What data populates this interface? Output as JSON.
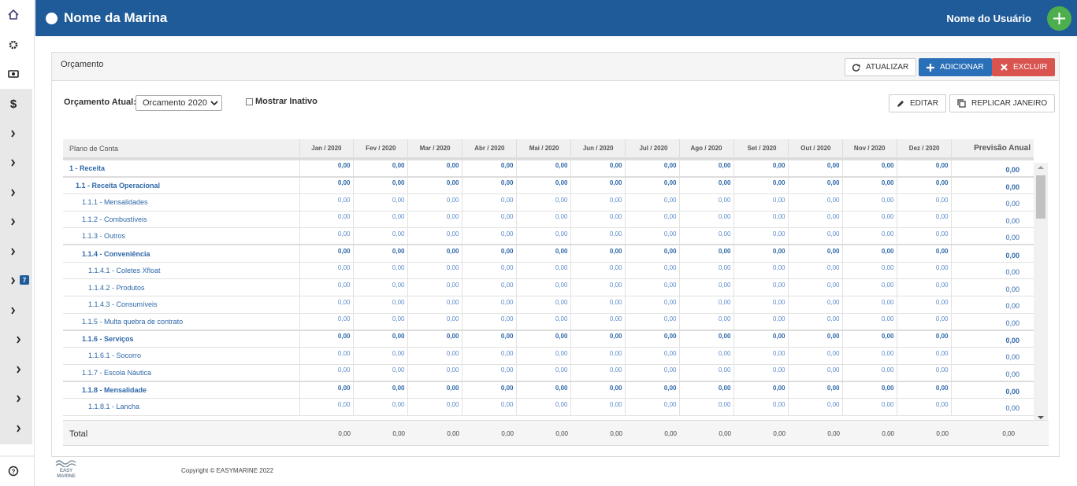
{
  "header": {
    "title": "Nome da Marina",
    "user": "Nome do Usuário"
  },
  "sidebar": {
    "currency_icon": "$",
    "badge": "7",
    "help_icon": "?"
  },
  "panel": {
    "title": "Orçamento",
    "buttons": {
      "refresh": "ATUALIZAR",
      "add": "ADICIONAR",
      "delete": "EXCLUIR",
      "edit": "EDITAR",
      "replicate": "REPLICAR JANEIRO"
    },
    "filter": {
      "label": "Orçamento Atual:",
      "selected": "Orcamento 2020",
      "checkbox": "Mostrar Inativo"
    }
  },
  "table": {
    "header": [
      "Plano de Conta",
      "Jan / 2020",
      "Fev / 2020",
      "Mar / 2020",
      "Abr / 2020",
      "Mai / 2020",
      "Jun / 2020",
      "Jul / 2020",
      "Ago / 2020",
      "Set / 2020",
      "Out / 2020",
      "Nov / 2020",
      "Dez / 2020",
      "Previsão Anual"
    ],
    "rows": [
      {
        "label": "1 - Receita",
        "values": [
          "0,00",
          "0,00",
          "0,00",
          "0,00",
          "0,00",
          "0,00",
          "0,00",
          "0,00",
          "0,00",
          "0,00",
          "0,00",
          "0,00",
          "0,00"
        ]
      },
      {
        "label": "1.1 - Receita Operacional",
        "values": [
          "0,00",
          "0,00",
          "0,00",
          "0,00",
          "0,00",
          "0,00",
          "0,00",
          "0,00",
          "0,00",
          "0,00",
          "0,00",
          "0,00",
          "0,00"
        ]
      },
      {
        "label": "1.1.1 - Mensalidades",
        "values": [
          "0,00",
          "0,00",
          "0,00",
          "0,00",
          "0,00",
          "0,00",
          "0,00",
          "0,00",
          "0,00",
          "0,00",
          "0,00",
          "0,00",
          "0,00"
        ]
      },
      {
        "label": "1.1.2 - Combustíveis",
        "values": [
          "0,00",
          "0,00",
          "0,00",
          "0,00",
          "0,00",
          "0,00",
          "0,00",
          "0,00",
          "0,00",
          "0,00",
          "0,00",
          "0,00",
          "0,00"
        ]
      },
      {
        "label": "1.1.3 - Outros",
        "values": [
          "0,00",
          "0,00",
          "0,00",
          "0,00",
          "0,00",
          "0,00",
          "0,00",
          "0,00",
          "0,00",
          "0,00",
          "0,00",
          "0,00",
          "0,00"
        ]
      },
      {
        "label": "1.1.4 - Conveniência",
        "values": [
          "0,00",
          "0,00",
          "0,00",
          "0,00",
          "0,00",
          "0,00",
          "0,00",
          "0,00",
          "0,00",
          "0,00",
          "0,00",
          "0,00",
          "0,00"
        ]
      },
      {
        "label": "1.1.4.1 - Coletes Xfloat",
        "values": [
          "0,00",
          "0,00",
          "0,00",
          "0,00",
          "0,00",
          "0,00",
          "0,00",
          "0,00",
          "0,00",
          "0,00",
          "0,00",
          "0,00",
          "0,00"
        ]
      },
      {
        "label": "1.1.4.2 - Produtos",
        "values": [
          "0,00",
          "0,00",
          "0,00",
          "0,00",
          "0,00",
          "0,00",
          "0,00",
          "0,00",
          "0,00",
          "0,00",
          "0,00",
          "0,00",
          "0,00"
        ]
      },
      {
        "label": "1.1.4.3 - Consumíveis",
        "values": [
          "0,00",
          "0,00",
          "0,00",
          "0,00",
          "0,00",
          "0,00",
          "0,00",
          "0,00",
          "0,00",
          "0,00",
          "0,00",
          "0,00",
          "0,00"
        ]
      },
      {
        "label": "1.1.5 - Multa quebra de contrato",
        "values": [
          "0,00",
          "0,00",
          "0,00",
          "0,00",
          "0,00",
          "0,00",
          "0,00",
          "0,00",
          "0,00",
          "0,00",
          "0,00",
          "0,00",
          "0,00"
        ]
      },
      {
        "label": "1.1.6 - Serviços",
        "values": [
          "0,00",
          "0,00",
          "0,00",
          "0,00",
          "0,00",
          "0,00",
          "0,00",
          "0,00",
          "0,00",
          "0,00",
          "0,00",
          "0,00",
          "0,00"
        ]
      },
      {
        "label": "1.1.6.1 - Socorro",
        "values": [
          "0,00",
          "0,00",
          "0,00",
          "0,00",
          "0,00",
          "0,00",
          "0,00",
          "0,00",
          "0,00",
          "0,00",
          "0,00",
          "0,00",
          "0,00"
        ]
      },
      {
        "label": "1.1.7 - Escola Náutica",
        "values": [
          "0,00",
          "0,00",
          "0,00",
          "0,00",
          "0,00",
          "0,00",
          "0,00",
          "0,00",
          "0,00",
          "0,00",
          "0,00",
          "0,00",
          "0,00"
        ]
      },
      {
        "label": "1.1.8 - Mensalidade",
        "values": [
          "0,00",
          "0,00",
          "0,00",
          "0,00",
          "0,00",
          "0,00",
          "0,00",
          "0,00",
          "0,00",
          "0,00",
          "0,00",
          "0,00",
          "0,00"
        ]
      },
      {
        "label": "1.1.8.1 - Lancha",
        "values": [
          "0,00",
          "0,00",
          "0,00",
          "0,00",
          "0,00",
          "0,00",
          "0,00",
          "0,00",
          "0,00",
          "0,00",
          "0,00",
          "0,00",
          "0,00"
        ]
      }
    ],
    "total": {
      "label": "Total",
      "values": [
        "0,00",
        "0,00",
        "0,00",
        "0,00",
        "0,00",
        "0,00",
        "0,00",
        "0,00",
        "0,00",
        "0,00",
        "0,00",
        "0,00",
        "0,00"
      ]
    }
  },
  "footer": {
    "logo": "EASY MARINE",
    "copyright": "Copyright © EASYMARINE 2022"
  }
}
